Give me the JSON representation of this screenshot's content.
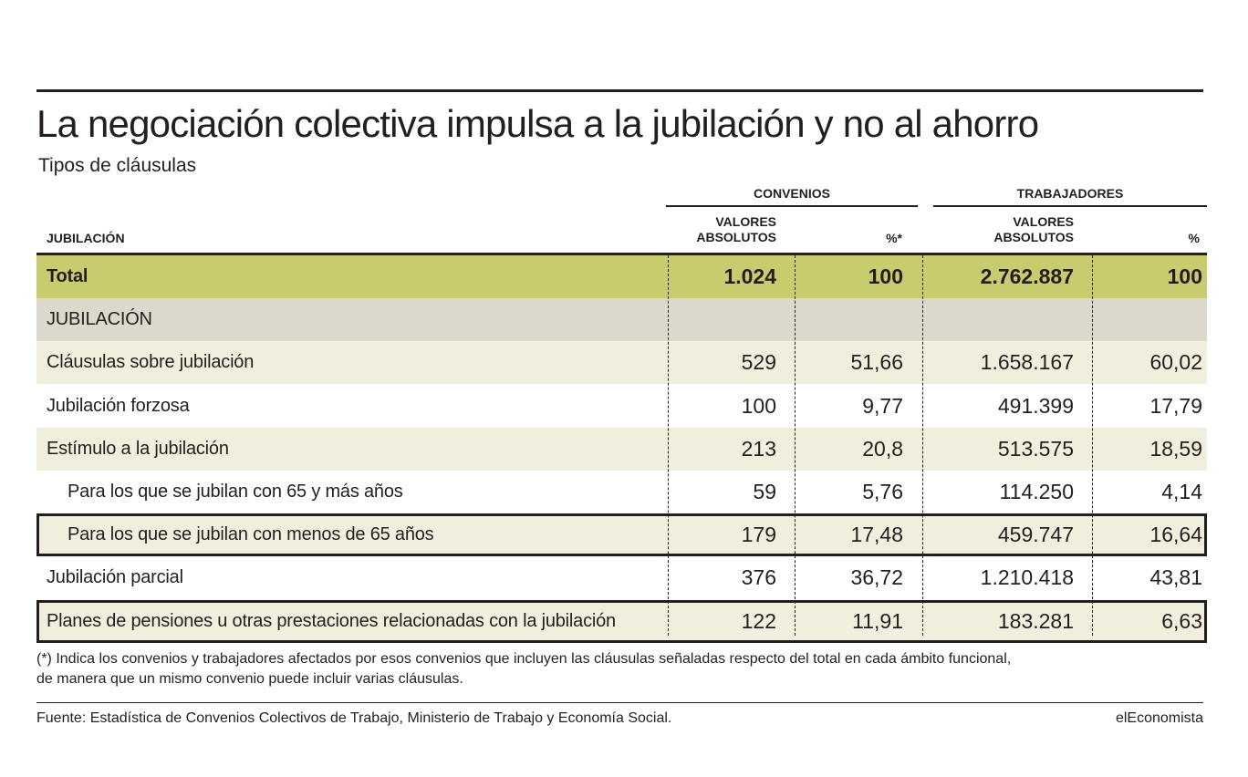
{
  "title": "La negociación colectiva impulsa a la jubilación y no al ahorro",
  "subtitle": "Tipos de cláusulas",
  "groups": {
    "convenios": "CONVENIOS",
    "trabajadores": "TRABAJADORES"
  },
  "columns": {
    "label": "JUBILACIÓN",
    "abs_line1": "VALORES",
    "abs_line2": "ABSOLUTOS",
    "conv_pct": "%*",
    "trab_pct": "%"
  },
  "chart_data": {
    "type": "table",
    "title": "La negociación colectiva impulsa a la jubilación y no al ahorro",
    "subtitle": "Tipos de cláusulas",
    "rows": [
      {
        "label": "Total",
        "style": "total",
        "conv_abs": "1.024",
        "conv_pct": "100",
        "trab_abs": "2.762.887",
        "trab_pct": "100"
      },
      {
        "label": "JUBILACIÓN",
        "style": "section",
        "conv_abs": "",
        "conv_pct": "",
        "trab_abs": "",
        "trab_pct": ""
      },
      {
        "label": "Cláusulas sobre jubilación",
        "style": "alt",
        "conv_abs": "529",
        "conv_pct": "51,66",
        "trab_abs": "1.658.167",
        "trab_pct": "60,02"
      },
      {
        "label": "Jubilación forzosa",
        "style": "plain",
        "conv_abs": "100",
        "conv_pct": "9,77",
        "trab_abs": "491.399",
        "trab_pct": "17,79"
      },
      {
        "label": "Estímulo a la jubilación",
        "style": "alt",
        "conv_abs": "213",
        "conv_pct": "20,8",
        "trab_abs": "513.575",
        "trab_pct": "18,59"
      },
      {
        "label": "Para los que se jubilan con 65 y más años",
        "style": "plain-indent",
        "conv_abs": "59",
        "conv_pct": "5,76",
        "trab_abs": "114.250",
        "trab_pct": "4,14"
      },
      {
        "label": "Para los que se jubilan con menos de 65 años",
        "style": "alt-indent-boxed",
        "conv_abs": "179",
        "conv_pct": "17,48",
        "trab_abs": "459.747",
        "trab_pct": "16,64"
      },
      {
        "label": "Jubilación parcial",
        "style": "plain",
        "conv_abs": "376",
        "conv_pct": "36,72",
        "trab_abs": "1.210.418",
        "trab_pct": "43,81"
      },
      {
        "label": "Planes de pensiones u otras prestaciones relacionadas con la jubilación",
        "style": "alt-boxed",
        "conv_abs": "122",
        "conv_pct": "11,91",
        "trab_abs": "183.281",
        "trab_pct": "6,63"
      }
    ]
  },
  "footnote_line1": "(*) Indica los convenios y trabajadores afectados por esos convenios que incluyen las cláusulas señaladas respecto del total en cada ámbito funcional,",
  "footnote_line2": "de manera que un mismo convenio puede incluir varias cláusulas.",
  "source": "Fuente: Estadística de Convenios Colectivos de Trabajo, Ministerio de Trabajo y Economía Social.",
  "brand": "elEconomista"
}
